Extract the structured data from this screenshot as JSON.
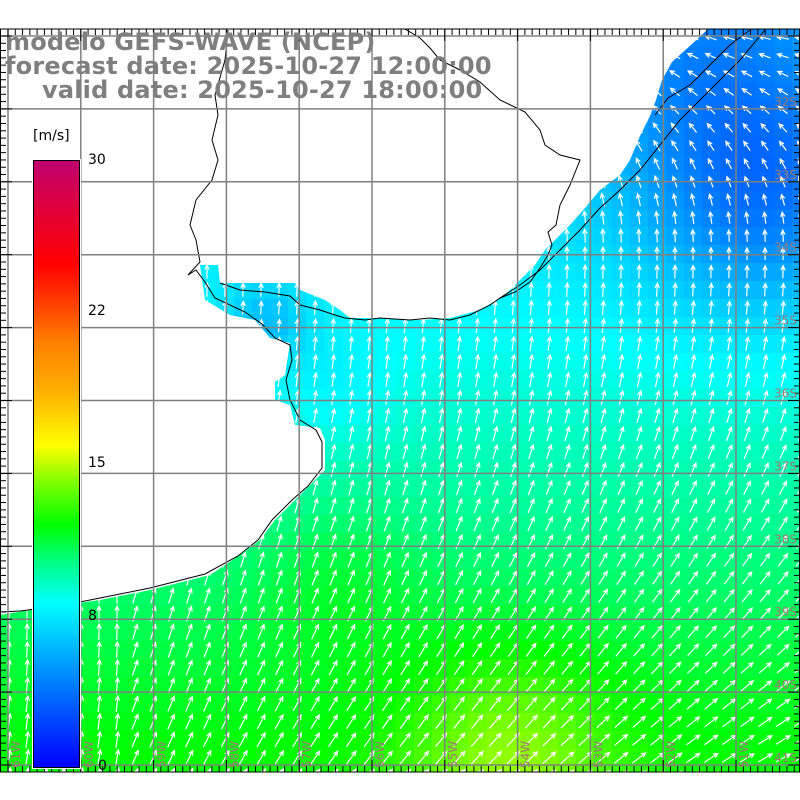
{
  "title": {
    "model": "modelo GEFS-WAVE (NCEP)",
    "forecast": "forecast date: 2025-10-27 12:00:00",
    "valid": "valid date: 2025-10-27 18:00:00"
  },
  "colorbar": {
    "unit": "[m/s]",
    "labels": [
      "30",
      "22",
      "15",
      "8",
      "0"
    ],
    "stops": [
      "#0000ff",
      "#00ffff",
      "#00ff00",
      "#ffff00",
      "#ff8000",
      "#ff0000",
      "#c0006e"
    ]
  },
  "axes": {
    "lon_labels": [
      "61W",
      "60W",
      "59W",
      "58W",
      "57W",
      "56W",
      "55W",
      "54W",
      "53W",
      "52W",
      "51W"
    ],
    "lat_labels": [
      "32S",
      "33S",
      "34S",
      "35S",
      "36S",
      "37S",
      "38S",
      "39S",
      "40S",
      "41S"
    ]
  },
  "colors": {
    "grid": "#808080",
    "label": "#7f7f7f",
    "land": "#ffffff",
    "coast": "#000000",
    "arrow": "#ffffff"
  }
}
